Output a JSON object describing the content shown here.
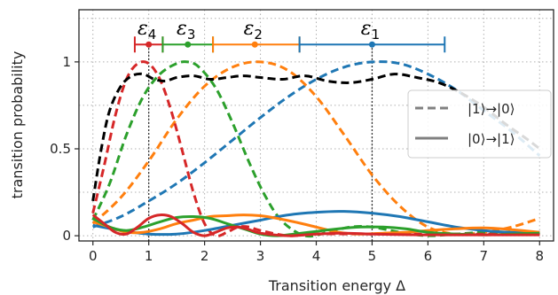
{
  "chart_data": {
    "type": "line",
    "xlabel": "Transition energy Δ",
    "ylabel": "transition probability",
    "xlim": [
      -0.25,
      8.25
    ],
    "ylim": [
      -0.03,
      1.3
    ],
    "xticks": [
      "0",
      "1",
      "2",
      "3",
      "4",
      "5",
      "6",
      "7",
      "8"
    ],
    "yticks": [
      {
        "value": 0,
        "label": "0"
      },
      {
        "value": 0.5,
        "label": "0.5"
      },
      {
        "value": 1,
        "label": "1"
      }
    ],
    "grid": true,
    "grid_style": "dotted",
    "legend": {
      "placement": "right",
      "entries": [
        {
          "label": "|1⟩→|0⟩",
          "style": "dashed",
          "color": "#808080"
        },
        {
          "label": "|0⟩→|1⟩",
          "style": "solid",
          "color": "#808080"
        }
      ]
    },
    "energy_levels": [
      {
        "name": "ε",
        "sub": "4",
        "center": 1.0,
        "low": 0.75,
        "high": 1.25,
        "color": "#d62728"
      },
      {
        "name": "ε",
        "sub": "3",
        "center": 1.7,
        "low": 1.25,
        "high": 2.15,
        "color": "#2ca02c"
      },
      {
        "name": "ε",
        "sub": "2",
        "center": 2.9,
        "low": 2.15,
        "high": 3.7,
        "color": "#ff7f0e"
      },
      {
        "name": "ε",
        "sub": "1",
        "center": 5.0,
        "low": 3.7,
        "high": 6.3,
        "color": "#1f77b4"
      }
    ],
    "marker_y": 1.1,
    "vlines_x": [
      1,
      5
    ],
    "series": [
      {
        "color": "#1f77b4",
        "style": "dashed",
        "x": [
          0,
          0.5,
          1,
          1.5,
          2,
          2.5,
          3,
          3.5,
          4,
          4.5,
          5,
          5.5,
          6,
          6.5,
          7,
          7.5,
          8
        ],
        "y": [
          0.05,
          0.11,
          0.2,
          0.3,
          0.42,
          0.55,
          0.68,
          0.8,
          0.9,
          0.97,
          1.0,
          0.99,
          0.93,
          0.84,
          0.72,
          0.6,
          0.46
        ]
      },
      {
        "color": "#ff7f0e",
        "style": "dashed",
        "x": [
          0,
          0.5,
          1,
          1.5,
          2,
          2.5,
          3,
          3.5,
          4,
          4.5,
          5,
          5.5,
          6,
          6.5,
          7,
          7.5,
          8
        ],
        "y": [
          0.07,
          0.22,
          0.43,
          0.67,
          0.86,
          0.97,
          1.0,
          0.95,
          0.8,
          0.58,
          0.35,
          0.17,
          0.05,
          0.01,
          0.02,
          0.05,
          0.1
        ]
      },
      {
        "color": "#2ca02c",
        "style": "dashed",
        "x": [
          0,
          0.3,
          0.6,
          0.9,
          1.2,
          1.5,
          1.7,
          1.9,
          2.2,
          2.5,
          2.8,
          3.1,
          3.4,
          3.8,
          4.2,
          4.6,
          5.0,
          5.5,
          6.0,
          6.5,
          7.0,
          7.5,
          8.0
        ],
        "y": [
          0.09,
          0.3,
          0.58,
          0.8,
          0.93,
          0.99,
          1.0,
          0.97,
          0.85,
          0.65,
          0.42,
          0.22,
          0.08,
          0.0,
          0.02,
          0.05,
          0.05,
          0.02,
          0.0,
          0.01,
          0.02,
          0.02,
          0.01
        ]
      },
      {
        "color": "#d62728",
        "style": "dashed",
        "x": [
          0,
          0.2,
          0.4,
          0.6,
          0.8,
          1.0,
          1.2,
          1.4,
          1.6,
          1.8,
          2.0,
          2.2,
          2.4,
          2.6,
          2.8,
          3.0,
          3.5,
          4,
          5,
          6,
          7,
          8
        ],
        "y": [
          0.13,
          0.4,
          0.69,
          0.9,
          0.99,
          0.99,
          0.9,
          0.72,
          0.49,
          0.25,
          0.07,
          0.0,
          0.02,
          0.05,
          0.05,
          0.03,
          0.0,
          0.01,
          0.01,
          0.01,
          0.01,
          0.01
        ]
      },
      {
        "color": "#000000",
        "style": "dashed",
        "x": [
          0,
          0.15,
          0.3,
          0.5,
          0.7,
          0.9,
          1.1,
          1.3,
          1.5,
          1.8,
          2.1,
          2.4,
          2.7,
          3.0,
          3.4,
          3.8,
          4.2,
          4.6,
          5.0,
          5.4,
          5.8,
          6.2,
          6.6,
          7.0,
          7.4,
          7.8,
          8.0
        ],
        "y": [
          0.2,
          0.5,
          0.72,
          0.86,
          0.92,
          0.93,
          0.9,
          0.89,
          0.91,
          0.92,
          0.9,
          0.91,
          0.92,
          0.91,
          0.9,
          0.92,
          0.89,
          0.88,
          0.9,
          0.93,
          0.91,
          0.88,
          0.82,
          0.74,
          0.64,
          0.55,
          0.5
        ]
      },
      {
        "color": "#1f77b4",
        "style": "solid",
        "x": [
          0,
          0.5,
          1,
          1.5,
          2,
          2.5,
          3,
          3.5,
          4,
          4.5,
          5,
          5.5,
          6,
          6.5,
          7,
          7.5,
          8
        ],
        "y": [
          0.06,
          0.03,
          0.01,
          0.01,
          0.03,
          0.06,
          0.09,
          0.12,
          0.135,
          0.14,
          0.13,
          0.11,
          0.08,
          0.05,
          0.03,
          0.02,
          0.02
        ]
      },
      {
        "color": "#ff7f0e",
        "style": "solid",
        "x": [
          0,
          0.3,
          0.6,
          0.9,
          1.2,
          1.5,
          1.8,
          2.1,
          2.4,
          2.7,
          3.0,
          3.3,
          3.6,
          4.0,
          4.4,
          4.8,
          5.2,
          5.6,
          6.0,
          6.5,
          7.0,
          7.5,
          8.0
        ],
        "y": [
          0.08,
          0.05,
          0.02,
          0.02,
          0.04,
          0.07,
          0.09,
          0.11,
          0.115,
          0.12,
          0.115,
          0.1,
          0.08,
          0.05,
          0.02,
          0.01,
          0.015,
          0.02,
          0.03,
          0.04,
          0.045,
          0.035,
          0.02
        ]
      },
      {
        "color": "#2ca02c",
        "style": "solid",
        "x": [
          0,
          0.3,
          0.6,
          0.9,
          1.2,
          1.5,
          1.8,
          2.1,
          2.4,
          2.7,
          3.0,
          3.3,
          3.6,
          4.0,
          4.4,
          4.8,
          5.2,
          5.6,
          6.0,
          6.5,
          7.0,
          7.5,
          8.0
        ],
        "y": [
          0.1,
          0.05,
          0.03,
          0.05,
          0.08,
          0.105,
          0.11,
          0.1,
          0.07,
          0.04,
          0.01,
          0.0,
          0.01,
          0.025,
          0.04,
          0.05,
          0.05,
          0.04,
          0.02,
          0.01,
          0.005,
          0.01,
          0.015
        ]
      },
      {
        "color": "#d62728",
        "style": "solid",
        "x": [
          0,
          0.2,
          0.4,
          0.6,
          0.8,
          1.0,
          1.2,
          1.4,
          1.6,
          1.8,
          2.0,
          2.2,
          2.4,
          2.6,
          2.8,
          3.0,
          3.5,
          4,
          4.5,
          5,
          6,
          7,
          8
        ],
        "y": [
          0.12,
          0.07,
          0.02,
          0.01,
          0.05,
          0.1,
          0.12,
          0.11,
          0.07,
          0.02,
          0.0,
          0.02,
          0.045,
          0.05,
          0.035,
          0.015,
          0.0,
          0.01,
          0.015,
          0.01,
          0.005,
          0.005,
          0.005
        ]
      }
    ]
  }
}
